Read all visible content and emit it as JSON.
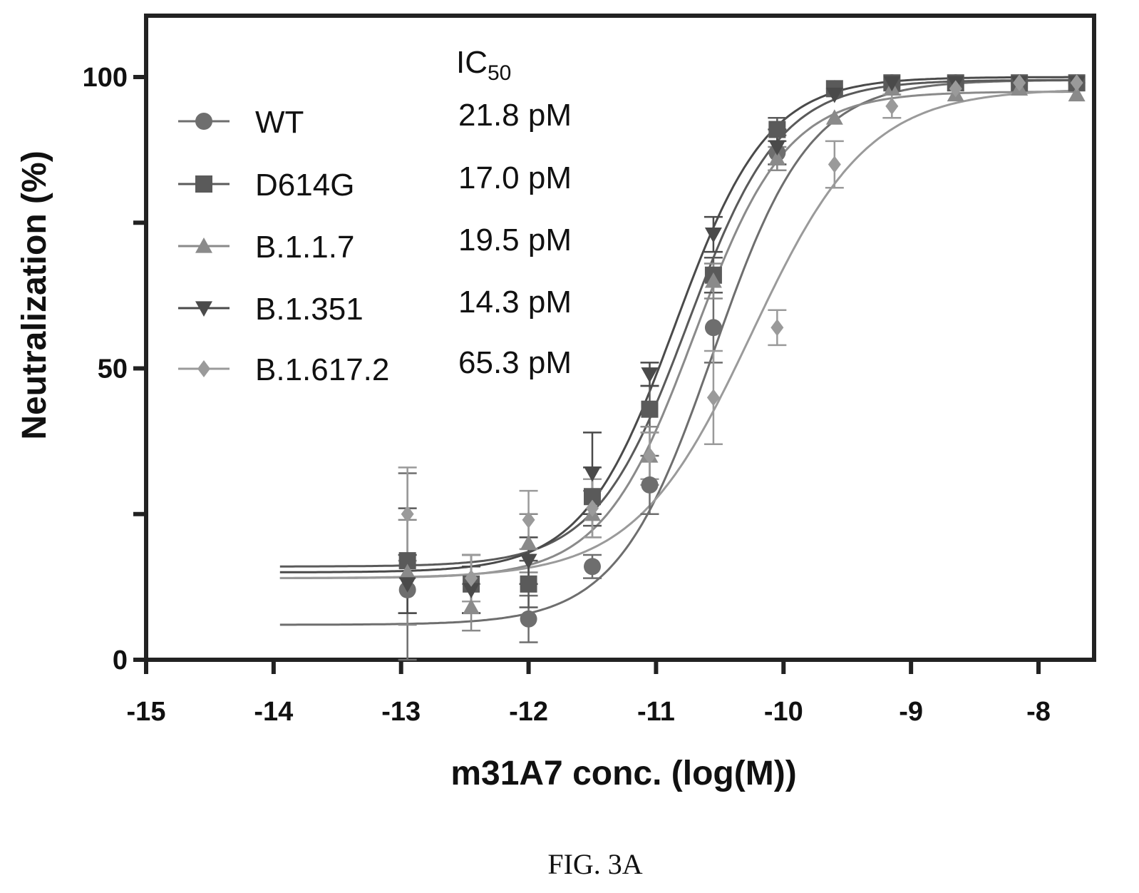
{
  "figure_caption": "FIG. 3A",
  "chart_data": {
    "type": "scatter",
    "xlabel": "m31A7 conc. (log(M))",
    "ylabel": "Neutralization (%)",
    "xlim": [
      -15,
      -7.7
    ],
    "ylim": [
      0,
      110
    ],
    "x_ticks": [
      -15,
      -14,
      -13,
      -12,
      -11,
      -10,
      -9,
      -8
    ],
    "x_tick_labels": [
      "-15",
      "-14",
      "-13",
      "-12",
      "-11",
      "-10",
      "-9",
      "-8"
    ],
    "y_ticks": [
      0,
      25,
      50,
      75,
      100
    ],
    "y_tick_labels": [
      "0",
      "",
      "50",
      "",
      "100"
    ],
    "legend_header": "IC",
    "legend_header_sub": "50",
    "legend_placement": "top-left",
    "grid": false,
    "series": [
      {
        "name": "WT",
        "ic50": "21.8 pM",
        "marker": "circle",
        "color": "#6e6e6e",
        "fit": {
          "bottom": 6,
          "top": 99.5,
          "log_ec50": -10.55,
          "hill": 1.15
        },
        "x": [
          -12.95,
          -12.45,
          -12.0,
          -11.5,
          -11.05,
          -10.55,
          -10.05,
          -9.6,
          -9.15,
          -8.65,
          -8.15,
          -7.7
        ],
        "y": [
          12,
          13,
          7,
          16,
          30,
          57,
          87,
          98,
          99,
          99,
          99,
          99
        ],
        "err": [
          20,
          5,
          4,
          2,
          5,
          6,
          3,
          1,
          1,
          1,
          1,
          1
        ]
      },
      {
        "name": "D614G",
        "ic50": "17.0 pM",
        "marker": "square",
        "color": "#5a5a5a",
        "fit": {
          "bottom": 16,
          "top": 99.5,
          "log_ec50": -10.75,
          "hill": 1.2
        },
        "x": [
          -12.95,
          -12.45,
          -12.0,
          -11.5,
          -11.05,
          -10.55,
          -10.05,
          -9.6,
          -9.15,
          -8.65,
          -8.15,
          -7.7
        ],
        "y": [
          17,
          13,
          13,
          28,
          43,
          66,
          91,
          98,
          99,
          99,
          99,
          99
        ],
        "err": [
          9,
          5,
          4,
          5,
          4,
          3,
          2,
          1,
          1,
          1,
          1,
          1
        ]
      },
      {
        "name": "B.1.1.7",
        "ic50": "19.5 pM",
        "marker": "triangle-up",
        "color": "#8a8a8a",
        "fit": {
          "bottom": 14,
          "top": 97.5,
          "log_ec50": -10.7,
          "hill": 1.2
        },
        "x": [
          -12.95,
          -12.45,
          -12.0,
          -11.5,
          -11.05,
          -10.55,
          -10.05,
          -9.6,
          -9.15,
          -8.65,
          -8.15,
          -7.7
        ],
        "y": [
          15,
          9,
          20,
          25,
          35,
          65,
          86,
          93,
          98,
          97,
          98,
          97
        ],
        "err": [
          9,
          4,
          5,
          4,
          5,
          3,
          2,
          1,
          1,
          1,
          1,
          1
        ]
      },
      {
        "name": "B.1.351",
        "ic50": "14.3 pM",
        "marker": "triangle-down",
        "color": "#4a4a4a",
        "fit": {
          "bottom": 15,
          "top": 100,
          "log_ec50": -10.85,
          "hill": 1.2
        },
        "x": [
          -12.95,
          -12.45,
          -12.0,
          -11.5,
          -11.05,
          -10.55,
          -10.05,
          -9.6,
          -9.15,
          -8.65,
          -8.15,
          -7.7
        ],
        "y": [
          13,
          12,
          17,
          32,
          49,
          73,
          88,
          97,
          99,
          99,
          99,
          99
        ],
        "err": [
          5,
          4,
          4,
          7,
          2,
          3,
          3,
          1,
          1,
          1,
          1,
          1
        ]
      },
      {
        "name": "B.1.617.2",
        "ic50": "65.3 pM",
        "marker": "diamond",
        "color": "#9a9a9a",
        "fit": {
          "bottom": 14,
          "top": 98,
          "log_ec50": -10.25,
          "hill": 0.95
        },
        "x": [
          -12.95,
          -12.45,
          -12.0,
          -11.5,
          -11.05,
          -10.55,
          -10.05,
          -9.6,
          -9.15,
          -8.65,
          -8.15,
          -7.7
        ],
        "y": [
          25,
          14,
          24,
          26,
          35,
          45,
          57,
          85,
          95,
          98,
          99,
          99
        ],
        "err": [
          8,
          4,
          5,
          5,
          4,
          8,
          3,
          4,
          2,
          1,
          1,
          1
        ]
      }
    ]
  }
}
